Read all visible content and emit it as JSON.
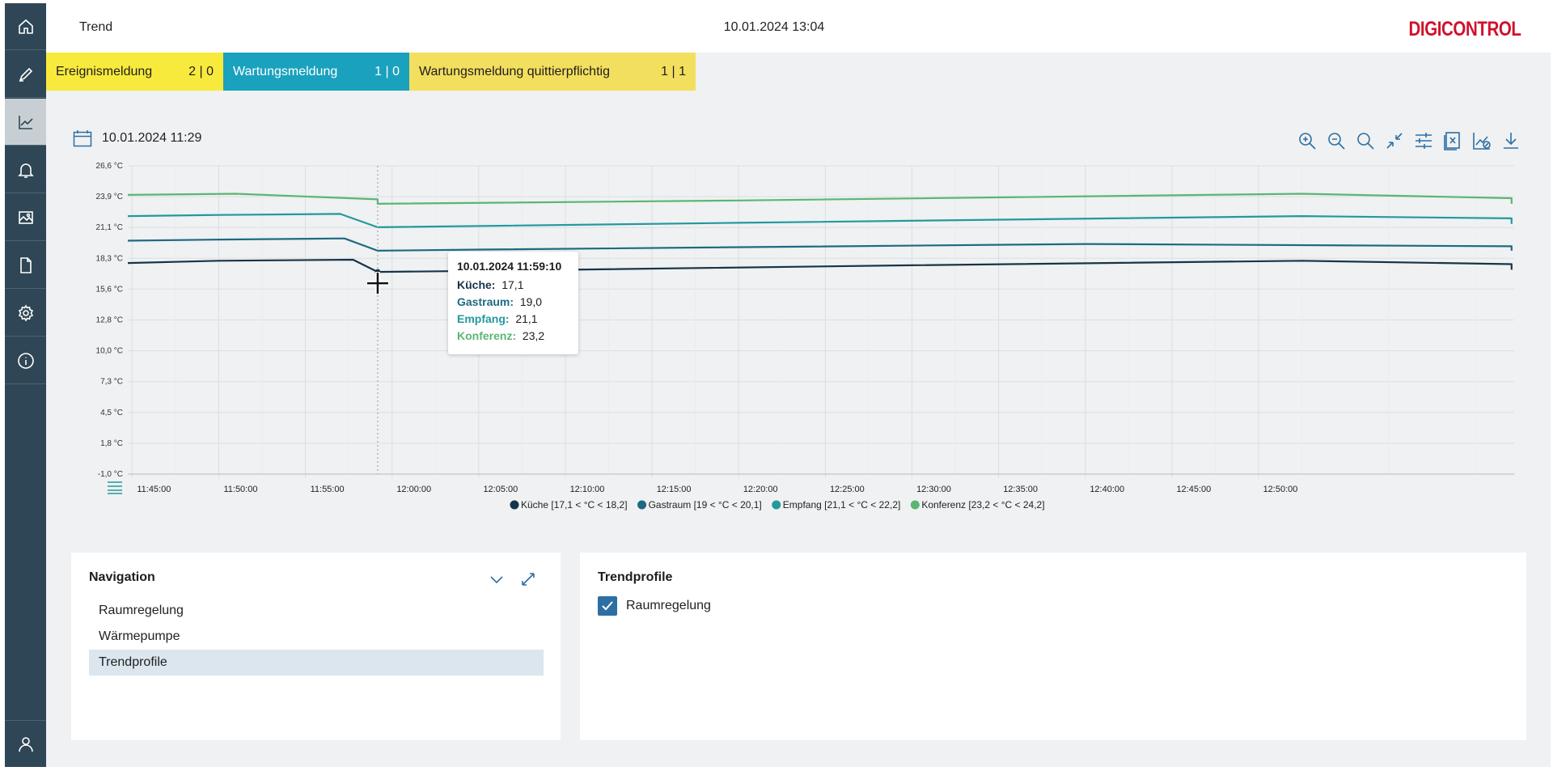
{
  "header": {
    "title": "Trend",
    "datetime": "10.01.2024 13:04",
    "logo": "DIGICONTROL"
  },
  "sidebar": {
    "items": [
      {
        "name": "home",
        "icon": "home-icon"
      },
      {
        "name": "edit",
        "icon": "pen-icon"
      },
      {
        "name": "trend",
        "icon": "chart-icon",
        "active": true
      },
      {
        "name": "alarms",
        "icon": "bell-icon"
      },
      {
        "name": "images",
        "icon": "image-icon"
      },
      {
        "name": "documents",
        "icon": "document-icon"
      },
      {
        "name": "settings",
        "icon": "gear-icon"
      },
      {
        "name": "info",
        "icon": "info-icon"
      },
      {
        "name": "user",
        "icon": "user-icon"
      }
    ]
  },
  "alarms": [
    {
      "label": "Ereignismeldung",
      "count": "2 | 0",
      "color": "#f8ea3c"
    },
    {
      "label": "Wartungsmeldung",
      "count": "1 | 0",
      "color": "#1aa1be"
    },
    {
      "label": "Wartungsmeldung quittierpflichtig",
      "count": "1 | 1",
      "color": "#f3df5e"
    }
  ],
  "chart_header": {
    "date": "10.01.2024 11:29"
  },
  "toolbar": [
    "zoom-in-icon",
    "zoom-out-icon",
    "zoom-reset-icon",
    "collapse-icon",
    "settings-sliders-icon",
    "excel-export-icon",
    "chart-hide-icon",
    "download-icon"
  ],
  "tooltip": {
    "timestamp": "10.01.2024 11:59:10",
    "rows": [
      {
        "label": "Küche:",
        "value": "17,1",
        "color": "#17344a"
      },
      {
        "label": "Gastraum:",
        "value": "19,0",
        "color": "#1d6a83"
      },
      {
        "label": "Empfang:",
        "value": "21,1",
        "color": "#23999d"
      },
      {
        "label": "Konferenz:",
        "value": "23,2",
        "color": "#5cb574"
      }
    ]
  },
  "chart_data": {
    "type": "line",
    "x_ticks": [
      "11:45:00",
      "11:50:00",
      "11:55:00",
      "12:00:00",
      "12:05:00",
      "12:10:00",
      "12:15:00",
      "12:20:00",
      "12:25:00",
      "12:30:00",
      "12:35:00",
      "12:40:00",
      "12:45:00",
      "12:50:00"
    ],
    "y_ticks": [
      "26,6 °C",
      "23,9 °C",
      "21,1 °C",
      "18,3 °C",
      "15,6 °C",
      "12,8 °C",
      "10,0 °C",
      "7,3 °C",
      "4,5 °C",
      "1,8 °C",
      "-1,0 °C"
    ],
    "ylim": [
      -1.0,
      26.6
    ],
    "xlim_minutes": [
      -15.25,
      64.75
    ],
    "grid": true,
    "legend_position": "bottom",
    "crosshair_minutes": -0.83,
    "series": [
      {
        "name": "Küche [17,1 < °C < 18,2]",
        "color": "#17344a",
        "points": [
          [
            -15.25,
            17.9
          ],
          [
            -10,
            18.1
          ],
          [
            -2.25,
            18.2
          ],
          [
            -0.83,
            17.1
          ],
          [
            5,
            17.2
          ],
          [
            30,
            17.7
          ],
          [
            52.5,
            18.1
          ],
          [
            64.6,
            17.8
          ],
          [
            64.6,
            17.3
          ]
        ]
      },
      {
        "name": "Gastraum [19 < °C < 20,1]",
        "color": "#1d6a83",
        "points": [
          [
            -15.25,
            19.9
          ],
          [
            -10,
            20.0
          ],
          [
            -2.75,
            20.1
          ],
          [
            -0.83,
            19.0
          ],
          [
            5,
            19.1
          ],
          [
            40,
            19.6
          ],
          [
            64.6,
            19.4
          ],
          [
            64.6,
            19.0
          ]
        ]
      },
      {
        "name": "Empfang [21,1 < °C < 22,2]",
        "color": "#23999d",
        "points": [
          [
            -15.25,
            22.1
          ],
          [
            -10,
            22.2
          ],
          [
            -3,
            22.3
          ],
          [
            -0.83,
            21.1
          ],
          [
            20,
            21.5
          ],
          [
            52.5,
            22.1
          ],
          [
            64.6,
            21.9
          ],
          [
            64.6,
            21.4
          ]
        ]
      },
      {
        "name": "Konferenz [23,2 < °C < 24,2]",
        "color": "#5cb574",
        "points": [
          [
            -15.25,
            24.0
          ],
          [
            -9,
            24.1
          ],
          [
            -0.83,
            23.6
          ],
          [
            -0.83,
            23.2
          ],
          [
            20,
            23.5
          ],
          [
            52.5,
            24.1
          ],
          [
            64.6,
            23.7
          ],
          [
            64.6,
            23.2
          ]
        ]
      }
    ]
  },
  "nav_panel": {
    "title": "Navigation",
    "items": [
      {
        "label": "Raumregelung",
        "selected": false
      },
      {
        "label": "Wärmepumpe",
        "selected": false
      },
      {
        "label": "Trendprofile",
        "selected": true
      }
    ]
  },
  "trend_panel": {
    "title": "Trendprofile",
    "checkbox_label": "Raumregelung",
    "checked": true
  }
}
